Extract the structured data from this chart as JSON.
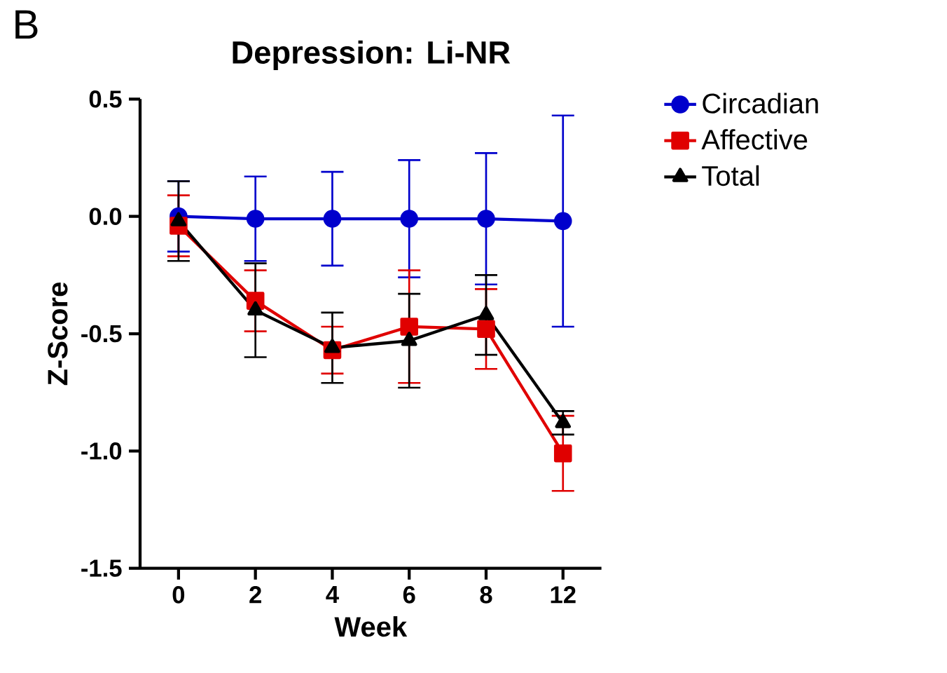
{
  "chart_data": {
    "type": "line",
    "title": "Depression: Li-NR",
    "xlabel": "Week",
    "ylabel": "Z-Score",
    "annotations": [
      "B"
    ],
    "categories": [
      "0",
      "2",
      "4",
      "6",
      "8",
      "12"
    ],
    "series": [
      {
        "name": "Circadian",
        "color": "#0000cc",
        "marker": "circle",
        "values": [
          0,
          -0.01,
          -0.01,
          -0.01,
          -0.01,
          -0.02
        ],
        "errors": [
          0.15,
          0.18,
          0.2,
          0.25,
          0.28,
          0.45
        ]
      },
      {
        "name": "Affective",
        "color": "#e00000",
        "marker": "square",
        "values": [
          -0.04,
          -0.36,
          -0.57,
          -0.47,
          -0.48,
          -1.01
        ],
        "errors": [
          0.13,
          0.13,
          0.1,
          0.24,
          0.17,
          0.16
        ]
      },
      {
        "name": "Total",
        "color": "#000000",
        "marker": "triangle",
        "values": [
          -0.02,
          -0.4,
          -0.56,
          -0.53,
          -0.42,
          -0.88
        ],
        "errors": [
          0.17,
          0.2,
          0.15,
          0.2,
          0.17,
          0.05
        ]
      }
    ],
    "ylim": [
      -1.5,
      0.5
    ],
    "yticks": [
      {
        "value": -1.5,
        "label": "-1.5"
      },
      {
        "value": -1.0,
        "label": "-1.0"
      },
      {
        "value": -0.5,
        "label": "-0.5"
      },
      {
        "value": 0,
        "label": "0.0"
      },
      {
        "value": 0.5,
        "label": "0.5"
      }
    ],
    "legend": "right",
    "grid": false,
    "line_style": "solid"
  }
}
